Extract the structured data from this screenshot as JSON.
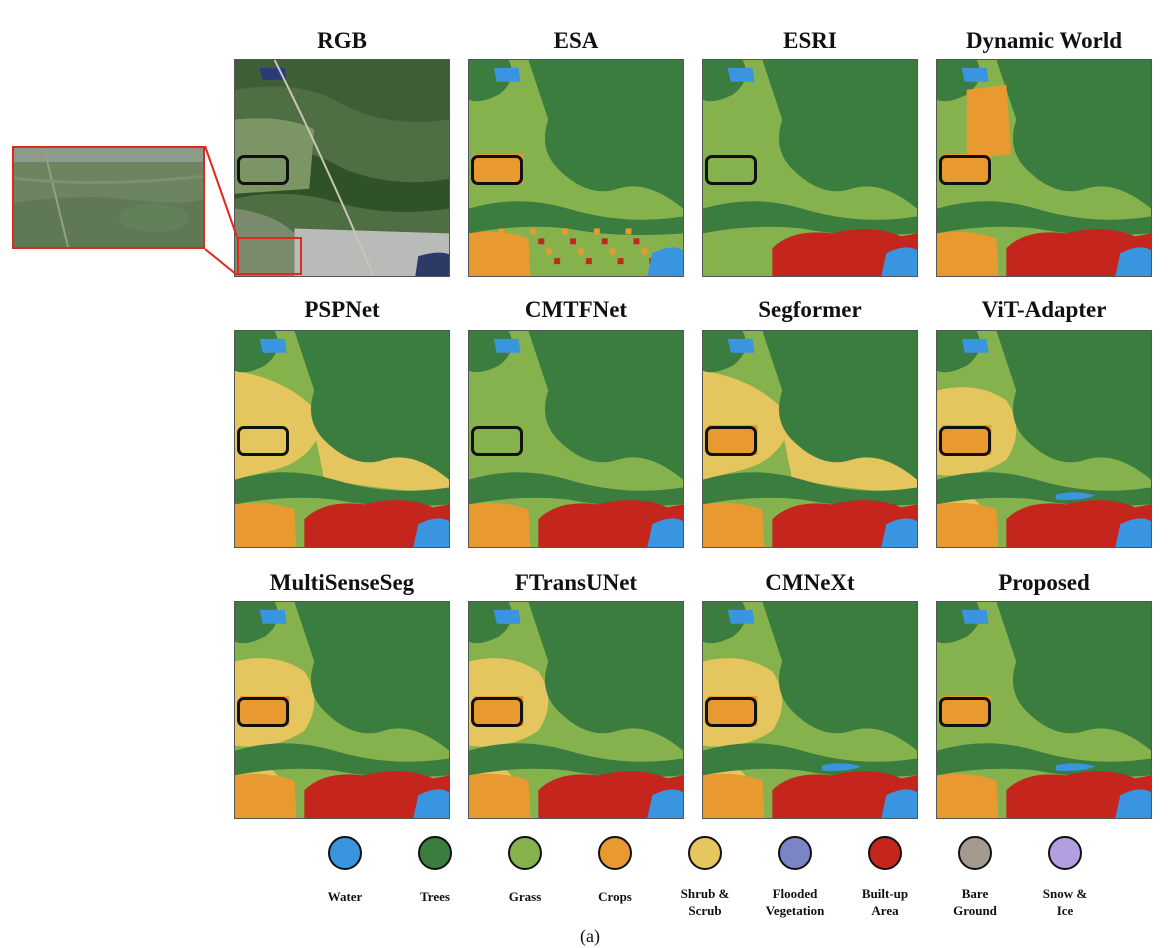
{
  "figure": {
    "panels": [
      {
        "title": "RGB",
        "kind": "rgb"
      },
      {
        "title": "ESA",
        "kind": "map",
        "variant": "esa"
      },
      {
        "title": "ESRI",
        "kind": "map",
        "variant": "esri"
      },
      {
        "title": "Dynamic World",
        "kind": "map",
        "variant": "dw"
      },
      {
        "title": "PSPNet",
        "kind": "map",
        "variant": "psp"
      },
      {
        "title": "CMTFNet",
        "kind": "map",
        "variant": "cmtf"
      },
      {
        "title": "Segformer",
        "kind": "map",
        "variant": "segf"
      },
      {
        "title": "ViT-Adapter",
        "kind": "map",
        "variant": "vit"
      },
      {
        "title": "MultiSenseSeg",
        "kind": "map",
        "variant": "mss"
      },
      {
        "title": "FTransUNet",
        "kind": "map",
        "variant": "ftu"
      },
      {
        "title": "CMNeXt",
        "kind": "map",
        "variant": "cmn"
      },
      {
        "title": "Proposed",
        "kind": "map",
        "variant": "prop"
      }
    ],
    "caption": "(a)"
  },
  "legend": [
    {
      "label": "Water",
      "color": "#3a95e0"
    },
    {
      "label": "Trees",
      "color": "#3a7d3e"
    },
    {
      "label": "Grass",
      "color": "#86b24e"
    },
    {
      "label": "Crops",
      "color": "#e8992f"
    },
    {
      "label": "Shrub & Scrub",
      "color": "#e5c55d"
    },
    {
      "label": "Flooded Vegetation",
      "color": "#7b84c6"
    },
    {
      "label": "Built-up Area",
      "color": "#c4251d"
    },
    {
      "label": "Bare Ground",
      "color": "#a59a8f"
    },
    {
      "label": "Snow & Ice",
      "color": "#b29fe0"
    }
  ]
}
